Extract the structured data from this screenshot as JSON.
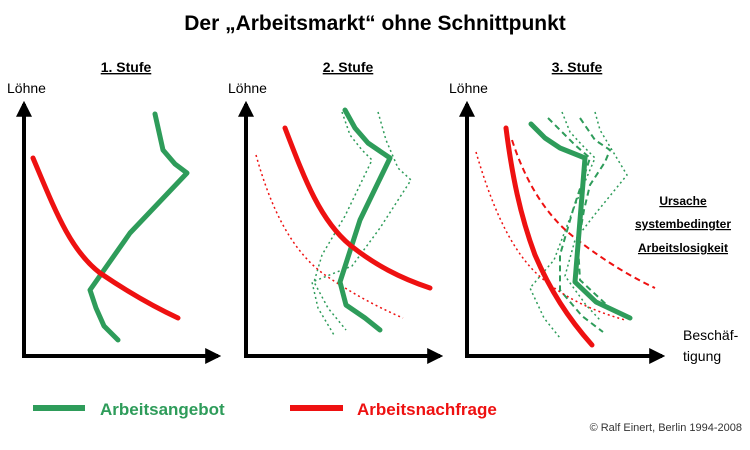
{
  "title": "Der „Arbeitsmarkt“ ohne Schnittpunkt",
  "panels": [
    {
      "label": "1. Stufe",
      "y_axis_label": "Löhne"
    },
    {
      "label": "2. Stufe",
      "y_axis_label": "Löhne"
    },
    {
      "label": "3. Stufe",
      "y_axis_label": "Löhne"
    }
  ],
  "x_axis_label": {
    "line1": "Beschäf-",
    "line2": "tigung"
  },
  "annotation": {
    "line1": "Ursache",
    "line2": "systembedingter",
    "line3": "Arbeitslosigkeit"
  },
  "legend": {
    "supply": {
      "label": "Arbeitsangebot",
      "color": "#2e9c5a"
    },
    "demand": {
      "label": "Arbeitsnachfrage",
      "color": "#ee1111"
    }
  },
  "copyright": "© Ralf Einert, Berlin 1994-2008"
}
